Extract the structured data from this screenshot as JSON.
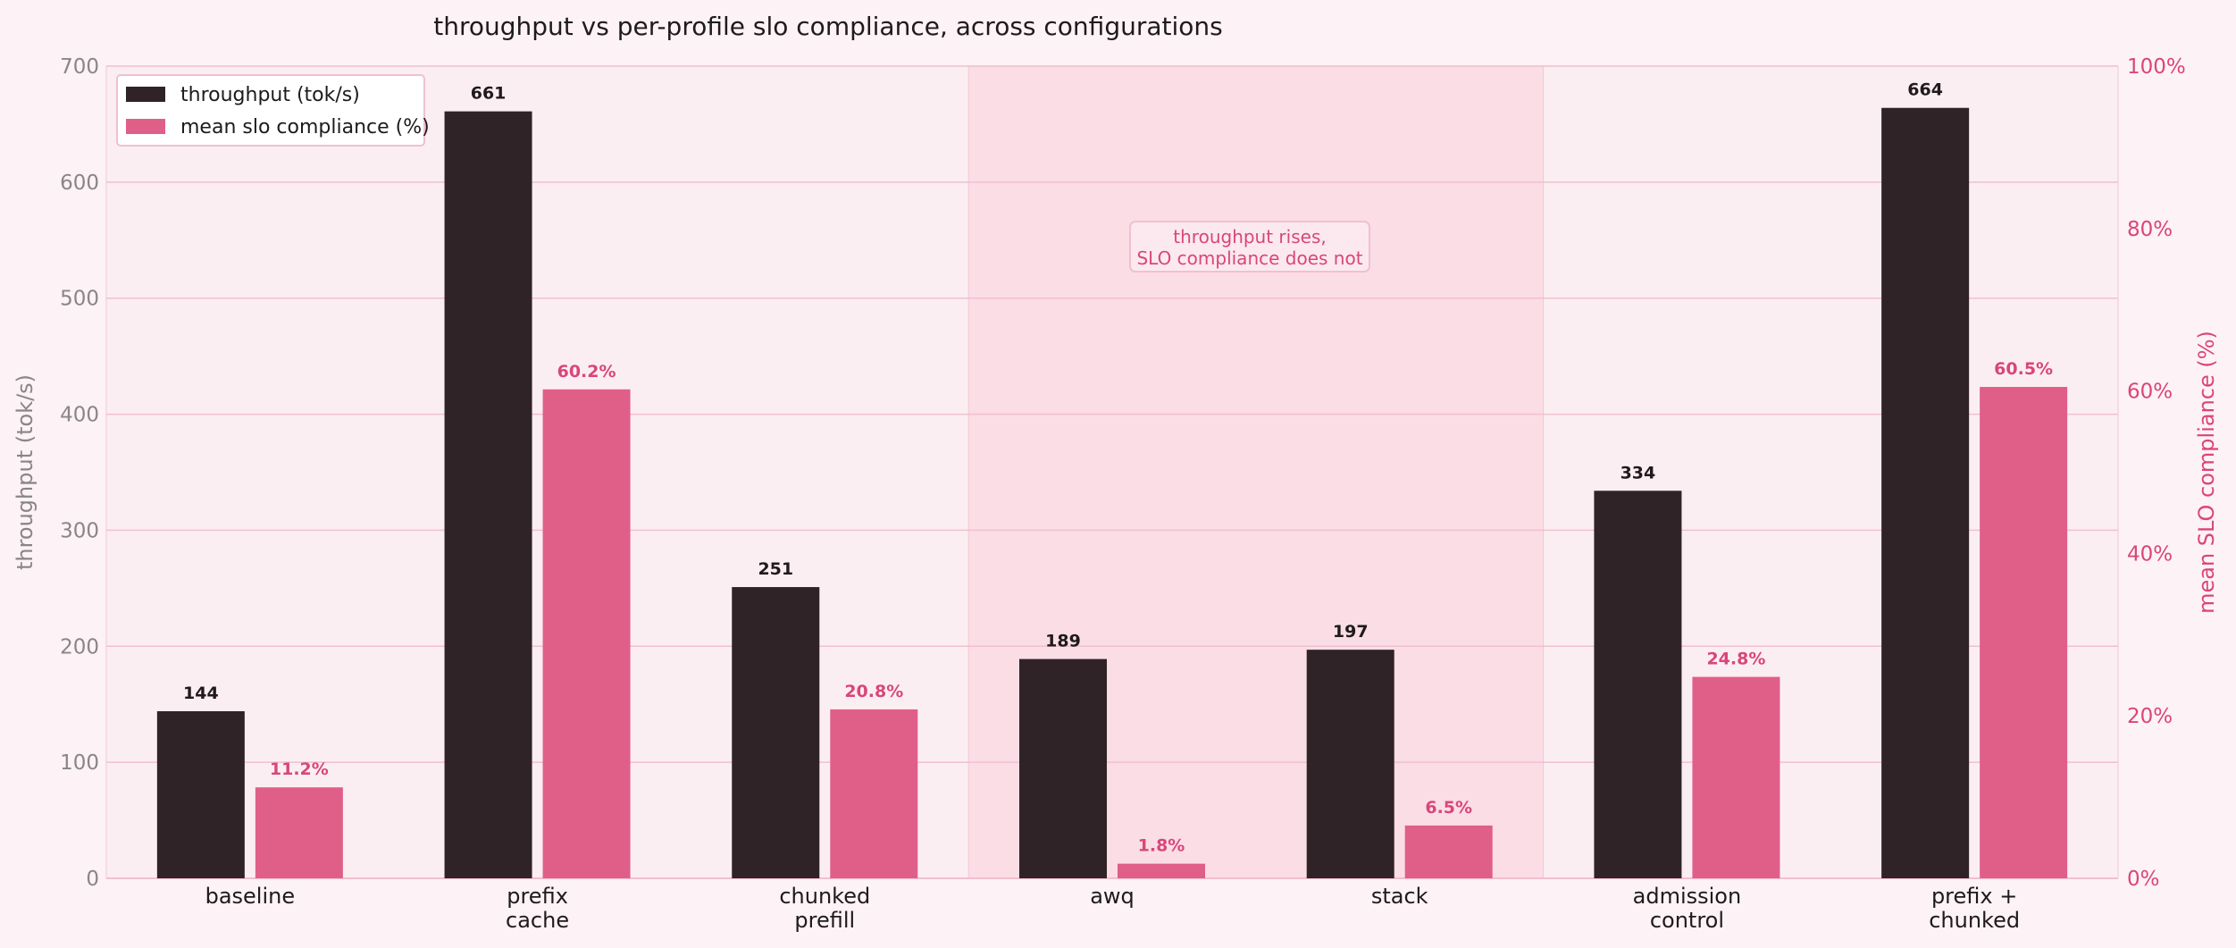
{
  "chart_data": {
    "type": "bar",
    "title": "throughput vs per-profile slo compliance, across configurations",
    "categories": [
      [
        "baseline"
      ],
      [
        "prefix",
        "cache"
      ],
      [
        "chunked",
        "prefill"
      ],
      [
        "awq"
      ],
      [
        "stack"
      ],
      [
        "admission",
        "control"
      ],
      [
        "prefix +",
        "chunked"
      ]
    ],
    "series": [
      {
        "name": "throughput (tok/s)",
        "axis": "left",
        "color": "#2f2327",
        "values": [
          144,
          661,
          251,
          189,
          197,
          334,
          664
        ],
        "labels": [
          "144",
          "661",
          "251",
          "189",
          "197",
          "334",
          "664"
        ]
      },
      {
        "name": "mean slo compliance (%)",
        "axis": "right",
        "color": "#df5f88",
        "values": [
          11.2,
          60.2,
          20.8,
          1.8,
          6.5,
          24.8,
          60.5
        ],
        "labels": [
          "11.2%",
          "60.2%",
          "20.8%",
          "1.8%",
          "6.5%",
          "24.8%",
          "60.5%"
        ]
      }
    ],
    "y_left": {
      "label": "throughput  (tok/s)",
      "lim": [
        0,
        700
      ],
      "ticks": [
        0,
        100,
        200,
        300,
        400,
        500,
        600,
        700
      ]
    },
    "y_right": {
      "label": "mean SLO compliance  (%)",
      "lim": [
        0,
        100
      ],
      "ticks": [
        0,
        20,
        40,
        60,
        80,
        100
      ],
      "tick_labels": [
        "0%",
        "20%",
        "40%",
        "60%",
        "80%",
        "100%"
      ]
    },
    "highlight_categories": [
      "awq",
      "stack"
    ],
    "annotation": [
      "throughput rises,",
      "SLO compliance does not"
    ],
    "legend_position": "top-left",
    "grid": "horizontal"
  }
}
